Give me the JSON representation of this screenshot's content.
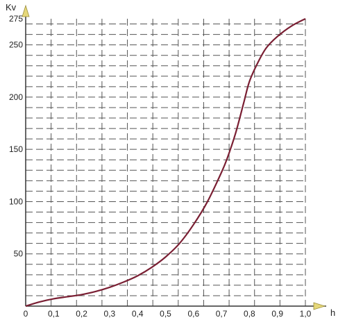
{
  "chart_data": {
    "type": "line",
    "xlabel": "h",
    "ylabel": "Kv",
    "xlim": [
      0,
      1.0
    ],
    "ylim": [
      0,
      275
    ],
    "grid": true,
    "x_ticks": [
      "0",
      "0,1",
      "0,2",
      "0,3",
      "0,4",
      "0,5",
      "0,6",
      "0,7",
      "0,8",
      "0,9",
      "1,0"
    ],
    "y_ticks": [
      "50",
      "100",
      "150",
      "200",
      "250",
      "275"
    ],
    "series": [
      {
        "x": [
          0,
          0.05,
          0.1,
          0.15,
          0.2,
          0.25,
          0.3,
          0.35,
          0.4,
          0.45,
          0.5,
          0.55,
          0.6,
          0.65,
          0.7,
          0.72,
          0.75,
          0.78,
          0.8,
          0.83,
          0.86,
          0.9,
          0.95,
          1.0
        ],
        "y": [
          0,
          4,
          7,
          9,
          11,
          14,
          18,
          23,
          29,
          37,
          47,
          60,
          78,
          100,
          128,
          141,
          165,
          195,
          215,
          233,
          247,
          258,
          268,
          275
        ],
        "color": "#7a1f33"
      }
    ],
    "colors": {
      "line": "#7a1f33",
      "arrow": "#e6d87a",
      "grid": "#555555",
      "axis": "#333333"
    }
  }
}
